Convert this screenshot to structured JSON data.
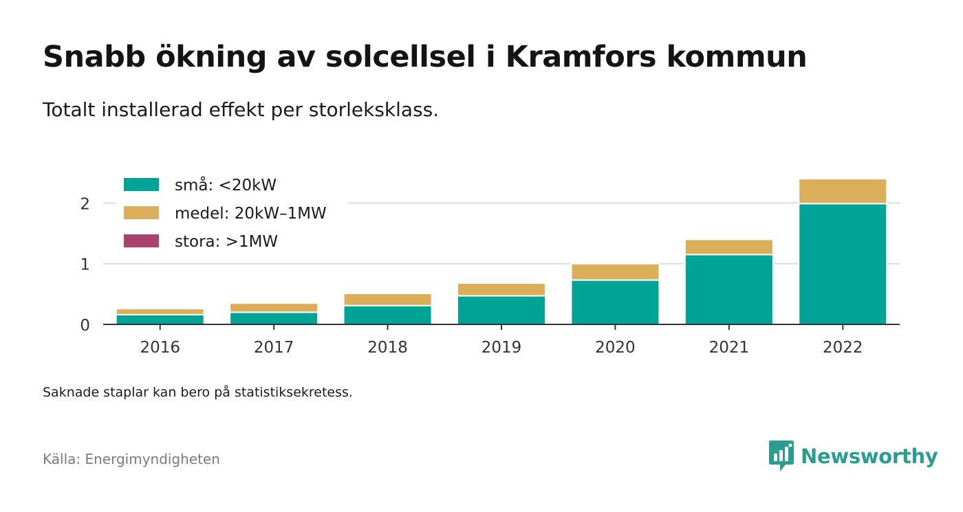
{
  "header": {
    "title": "Snabb ökning av solcellsel i Kramfors kommun",
    "subtitle": "Totalt installerad effekt per storleksklass."
  },
  "footer": {
    "note": "Saknade staplar kan bero på statistiksekretess.",
    "source": "Källa: Energimyndigheten",
    "brand": "Newsworthy",
    "brand_icon": "newsworthy-logo-icon",
    "brand_color": "#2a9d8f"
  },
  "chart_data": {
    "type": "bar",
    "stacked": true,
    "categories": [
      "2016",
      "2017",
      "2018",
      "2019",
      "2020",
      "2021",
      "2022"
    ],
    "series": [
      {
        "name": "små: <20kW",
        "color": "#00a497",
        "values": [
          0.16,
          0.2,
          0.31,
          0.47,
          0.73,
          1.15,
          1.99
        ]
      },
      {
        "name": "medel: 20kW–1MW",
        "color": "#dbae59",
        "values": [
          0.1,
          0.15,
          0.2,
          0.21,
          0.27,
          0.25,
          0.41
        ]
      },
      {
        "name": "stora: >1MW",
        "color": "#a8436e",
        "values": [
          0,
          0,
          0,
          0,
          0,
          0,
          0
        ]
      }
    ],
    "ylim": [
      0,
      2.4
    ],
    "yticks": [
      "0",
      "1",
      "2"
    ],
    "grid": true,
    "legend": "top-left"
  }
}
